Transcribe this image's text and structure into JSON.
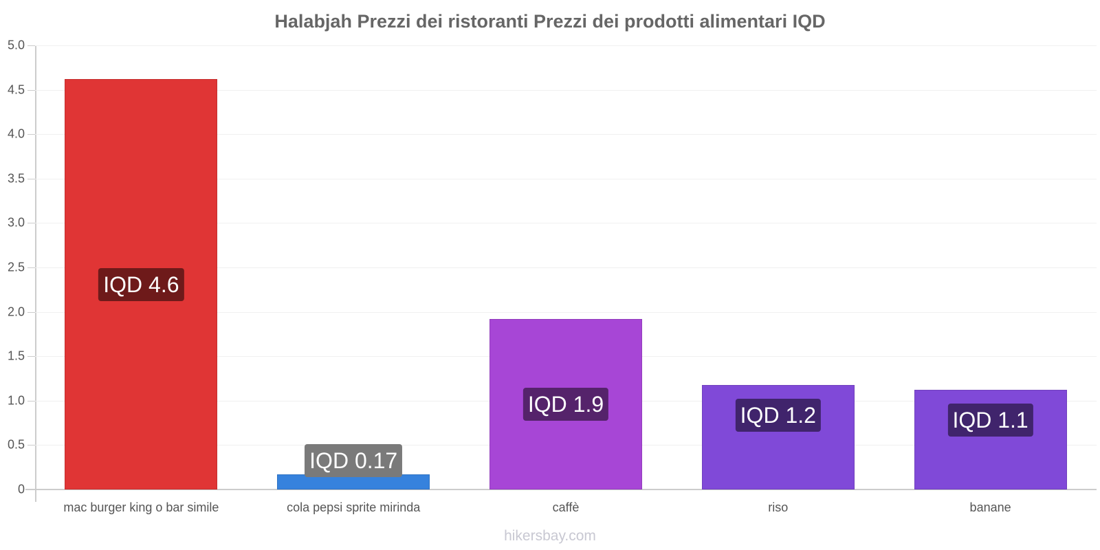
{
  "chart_data": {
    "type": "bar",
    "title": "Halabjah Prezzi dei ristoranti Prezzi dei prodotti alimentari IQD",
    "xlabel": "",
    "ylabel": "",
    "ylim": [
      0,
      5.0
    ],
    "yticks": [
      "0",
      "0.5",
      "1.0",
      "1.5",
      "2.0",
      "2.5",
      "3.0",
      "3.5",
      "4.0",
      "4.5",
      "5.0"
    ],
    "grid": true,
    "legend": null,
    "categories": [
      "mac burger king o bar simile",
      "cola pepsi sprite mirinda",
      "caffè",
      "riso",
      "banane"
    ],
    "values": [
      4.62,
      0.17,
      1.92,
      1.18,
      1.12
    ],
    "data_labels": [
      "IQD 4.6",
      "IQD 0.17",
      "IQD 1.9",
      "IQD 1.2",
      "IQD 1.1"
    ],
    "bar_colors": [
      "#e03535",
      "#3682dd",
      "#a746d6",
      "#8049d8",
      "#8049d8"
    ],
    "label_colors": [
      "#6e1a1a",
      "#7a7a7a",
      "#55236b",
      "#40246c",
      "#40246c"
    ]
  },
  "watermark": "hikersbay.com"
}
